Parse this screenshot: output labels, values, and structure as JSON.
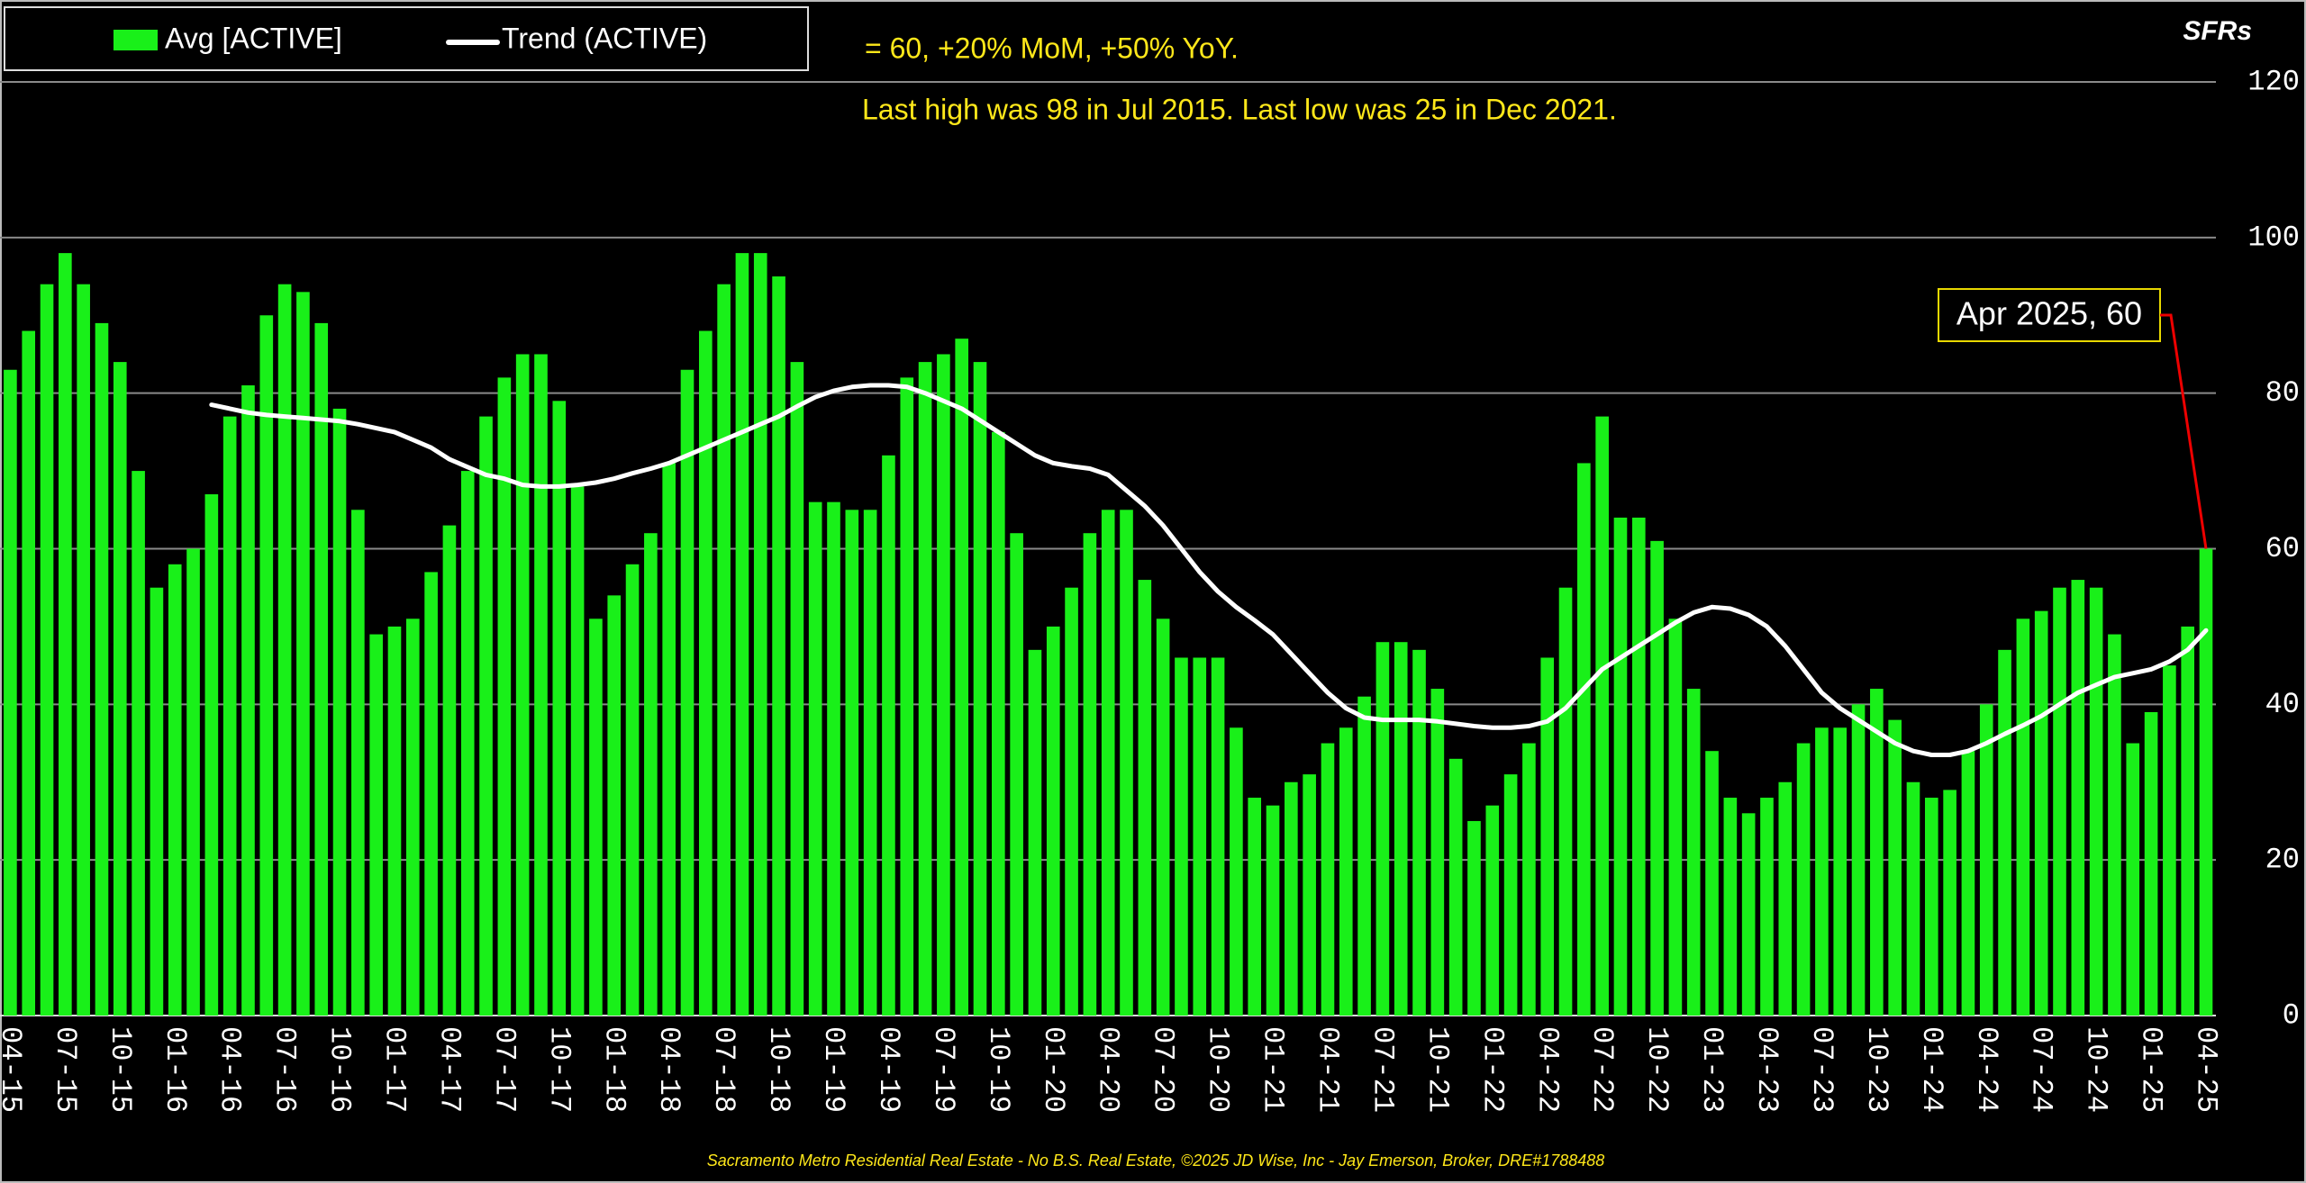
{
  "chart_data": {
    "type": "bar",
    "y_label": "SFRs",
    "annotations": [
      "= 60, +20% MoM, +50% YoY.",
      "Last high was 98 in Jul 2015. Last low was 25 in Dec 2021."
    ],
    "callout": "Apr 2025,  60",
    "footer": "Sacramento Metro Residential Real Estate - No B.S. Real Estate, ©2025 JD Wise, Inc - Jay Emerson, Broker, DRE#1788488",
    "categories": [
      "04-15",
      null,
      null,
      "07-15",
      null,
      null,
      "10-15",
      null,
      null,
      "01-16",
      null,
      null,
      "04-16",
      null,
      null,
      "07-16",
      null,
      null,
      "10-16",
      null,
      null,
      "01-17",
      null,
      null,
      "04-17",
      null,
      null,
      "07-17",
      null,
      null,
      "10-17",
      null,
      null,
      "01-18",
      null,
      null,
      "04-18",
      null,
      null,
      "07-18",
      null,
      null,
      "10-18",
      null,
      null,
      "01-19",
      null,
      null,
      "04-19",
      null,
      null,
      "07-19",
      null,
      null,
      "10-19",
      null,
      null,
      "01-20",
      null,
      null,
      "04-20",
      null,
      null,
      "07-20",
      null,
      null,
      "10-20",
      null,
      null,
      "01-21",
      null,
      null,
      "04-21",
      null,
      null,
      "07-21",
      null,
      null,
      "10-21",
      null,
      null,
      "01-22",
      null,
      null,
      "04-22",
      null,
      null,
      "07-22",
      null,
      null,
      "10-22",
      null,
      null,
      "01-23",
      null,
      null,
      "04-23",
      null,
      null,
      "07-23",
      null,
      null,
      "10-23",
      null,
      null,
      "01-24",
      null,
      null,
      "04-24",
      null,
      null,
      "07-24",
      null,
      null,
      "10-24",
      null,
      null,
      "01-25",
      null,
      null,
      "04-25"
    ],
    "series": [
      {
        "name": "Avg [ACTIVE]",
        "type": "bar",
        "color": "#19f019",
        "values": [
          83,
          88,
          94,
          98,
          94,
          89,
          84,
          70,
          55,
          58,
          60,
          67,
          77,
          81,
          90,
          94,
          93,
          89,
          78,
          65,
          49,
          50,
          51,
          57,
          63,
          70,
          77,
          82,
          85,
          85,
          79,
          68,
          51,
          54,
          58,
          62,
          71,
          83,
          88,
          94,
          98,
          98,
          95,
          84,
          66,
          66,
          65,
          65,
          72,
          82,
          84,
          85,
          87,
          84,
          75,
          62,
          47,
          50,
          55,
          62,
          65,
          65,
          56,
          51,
          46,
          46,
          46,
          37,
          28,
          27,
          30,
          31,
          35,
          37,
          41,
          48,
          48,
          47,
          42,
          33,
          25,
          27,
          31,
          35,
          46,
          55,
          71,
          77,
          64,
          64,
          61,
          51,
          42,
          34,
          28,
          26,
          28,
          30,
          35,
          37,
          37,
          40,
          42,
          38,
          30,
          28,
          29,
          34,
          40,
          47,
          51,
          52,
          55,
          56,
          55,
          49,
          35,
          39,
          45,
          50,
          60
        ]
      },
      {
        "name": "Trend (ACTIVE)",
        "type": "line",
        "color": "#ffffff",
        "values": [
          null,
          null,
          null,
          null,
          null,
          null,
          null,
          null,
          null,
          null,
          null,
          78.5,
          78,
          77.5,
          77.2,
          77,
          76.8,
          76.6,
          76.4,
          76,
          75.5,
          75,
          74,
          73,
          71.5,
          70.5,
          69.5,
          69,
          68.2,
          68,
          68,
          68.2,
          68.5,
          69,
          69.7,
          70.3,
          71,
          72,
          73,
          74,
          75,
          76,
          77,
          78.3,
          79.5,
          80.3,
          80.8,
          81,
          81,
          80.8,
          80,
          79,
          78,
          76.5,
          75,
          73.5,
          72,
          71,
          70.6,
          70.3,
          69.5,
          67.5,
          65.5,
          63,
          60,
          57,
          54.5,
          52.5,
          50.8,
          49,
          46.5,
          44,
          41.5,
          39.5,
          38.3,
          38,
          38,
          38,
          37.8,
          37.5,
          37.2,
          37,
          37,
          37.2,
          37.8,
          39.5,
          42,
          44.5,
          46,
          47.5,
          49,
          50.5,
          51.8,
          52.5,
          52.3,
          51.5,
          50,
          47.5,
          44.5,
          41.5,
          39.5,
          38,
          36.5,
          35,
          34,
          33.5,
          33.5,
          34,
          35,
          36.2,
          37.3,
          38.5,
          40,
          41.5,
          42.5,
          43.5,
          44,
          44.5,
          45.5,
          47,
          49.5
        ]
      }
    ],
    "ylim": [
      0,
      120
    ],
    "yticks": [
      0,
      20,
      40,
      60,
      80,
      100,
      120
    ],
    "grid": true
  }
}
